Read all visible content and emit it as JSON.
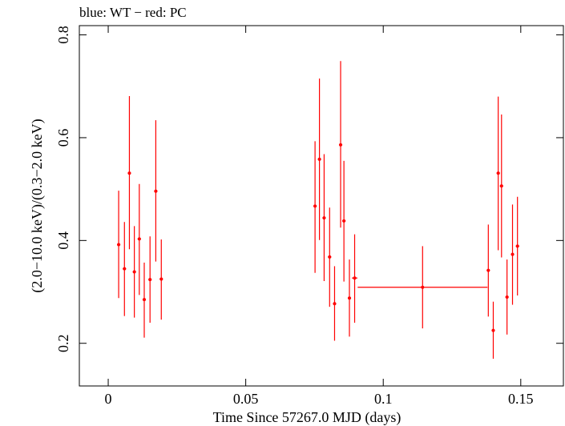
{
  "chart_data": {
    "type": "scatter",
    "title": "blue: WT − red: PC",
    "xlabel": "Time Since 57267.0 MJD (days)",
    "ylabel": "(2.0−10.0 keV)/(0.3−2.0 keV)",
    "xlim": [
      -0.0105,
      0.1655
    ],
    "ylim": [
      0.117,
      0.818
    ],
    "x_ticks": [
      {
        "value": 0,
        "label": "0"
      },
      {
        "value": 0.05,
        "label": "0.05"
      },
      {
        "value": 0.1,
        "label": "0.1"
      },
      {
        "value": 0.15,
        "label": "0.15"
      }
    ],
    "y_ticks": [
      {
        "value": 0.2,
        "label": "0.2"
      },
      {
        "value": 0.4,
        "label": "0.4"
      },
      {
        "value": 0.6,
        "label": "0.6"
      },
      {
        "value": 0.8,
        "label": "0.8"
      }
    ],
    "series": [
      {
        "name": "PC",
        "color": "#ff0000",
        "points": [
          {
            "x": 0.0038,
            "xerr": 0.0006,
            "y": 0.392,
            "ylo": 0.288,
            "yhi": 0.497
          },
          {
            "x": 0.0059,
            "xerr": 0.0006,
            "y": 0.345,
            "ylo": 0.253,
            "yhi": 0.436
          },
          {
            "x": 0.0077,
            "xerr": 0.0006,
            "y": 0.531,
            "ylo": 0.383,
            "yhi": 0.681
          },
          {
            "x": 0.0095,
            "xerr": 0.0006,
            "y": 0.339,
            "ylo": 0.25,
            "yhi": 0.428
          },
          {
            "x": 0.0113,
            "xerr": 0.0006,
            "y": 0.403,
            "ylo": 0.294,
            "yhi": 0.51
          },
          {
            "x": 0.0131,
            "xerr": 0.0006,
            "y": 0.285,
            "ylo": 0.211,
            "yhi": 0.357
          },
          {
            "x": 0.0152,
            "xerr": 0.0006,
            "y": 0.324,
            "ylo": 0.24,
            "yhi": 0.408
          },
          {
            "x": 0.0173,
            "xerr": 0.0006,
            "y": 0.496,
            "ylo": 0.359,
            "yhi": 0.634
          },
          {
            "x": 0.0193,
            "xerr": 0.0006,
            "y": 0.325,
            "ylo": 0.246,
            "yhi": 0.402
          },
          {
            "x": 0.0752,
            "xerr": 0.0006,
            "y": 0.467,
            "ylo": 0.337,
            "yhi": 0.593
          },
          {
            "x": 0.0768,
            "xerr": 0.0006,
            "y": 0.558,
            "ylo": 0.401,
            "yhi": 0.715
          },
          {
            "x": 0.0785,
            "xerr": 0.0006,
            "y": 0.444,
            "ylo": 0.321,
            "yhi": 0.568
          },
          {
            "x": 0.0805,
            "xerr": 0.0006,
            "y": 0.368,
            "ylo": 0.271,
            "yhi": 0.464
          },
          {
            "x": 0.0823,
            "xerr": 0.0006,
            "y": 0.277,
            "ylo": 0.205,
            "yhi": 0.35
          },
          {
            "x": 0.0845,
            "xerr": 0.0006,
            "y": 0.586,
            "ylo": 0.425,
            "yhi": 0.749
          },
          {
            "x": 0.0857,
            "xerr": 0.0006,
            "y": 0.438,
            "ylo": 0.32,
            "yhi": 0.555
          },
          {
            "x": 0.0877,
            "xerr": 0.0006,
            "y": 0.288,
            "ylo": 0.213,
            "yhi": 0.363
          },
          {
            "x": 0.0896,
            "xerr": 0.001,
            "y": 0.327,
            "ylo": 0.24,
            "yhi": 0.412
          },
          {
            "x": 0.1143,
            "xerr": 0.0236,
            "y": 0.309,
            "ylo": 0.229,
            "yhi": 0.389
          },
          {
            "x": 0.1382,
            "xerr": 0.0006,
            "y": 0.342,
            "ylo": 0.252,
            "yhi": 0.431
          },
          {
            "x": 0.14,
            "xerr": 0.0006,
            "y": 0.225,
            "ylo": 0.17,
            "yhi": 0.281
          },
          {
            "x": 0.1418,
            "xerr": 0.0006,
            "y": 0.531,
            "ylo": 0.381,
            "yhi": 0.68
          },
          {
            "x": 0.143,
            "xerr": 0.0006,
            "y": 0.506,
            "ylo": 0.367,
            "yhi": 0.645
          },
          {
            "x": 0.145,
            "xerr": 0.0006,
            "y": 0.29,
            "ylo": 0.217,
            "yhi": 0.363
          },
          {
            "x": 0.147,
            "xerr": 0.0006,
            "y": 0.373,
            "ylo": 0.275,
            "yhi": 0.47
          },
          {
            "x": 0.1488,
            "xerr": 0.0006,
            "y": 0.389,
            "ylo": 0.293,
            "yhi": 0.485
          }
        ]
      }
    ]
  }
}
